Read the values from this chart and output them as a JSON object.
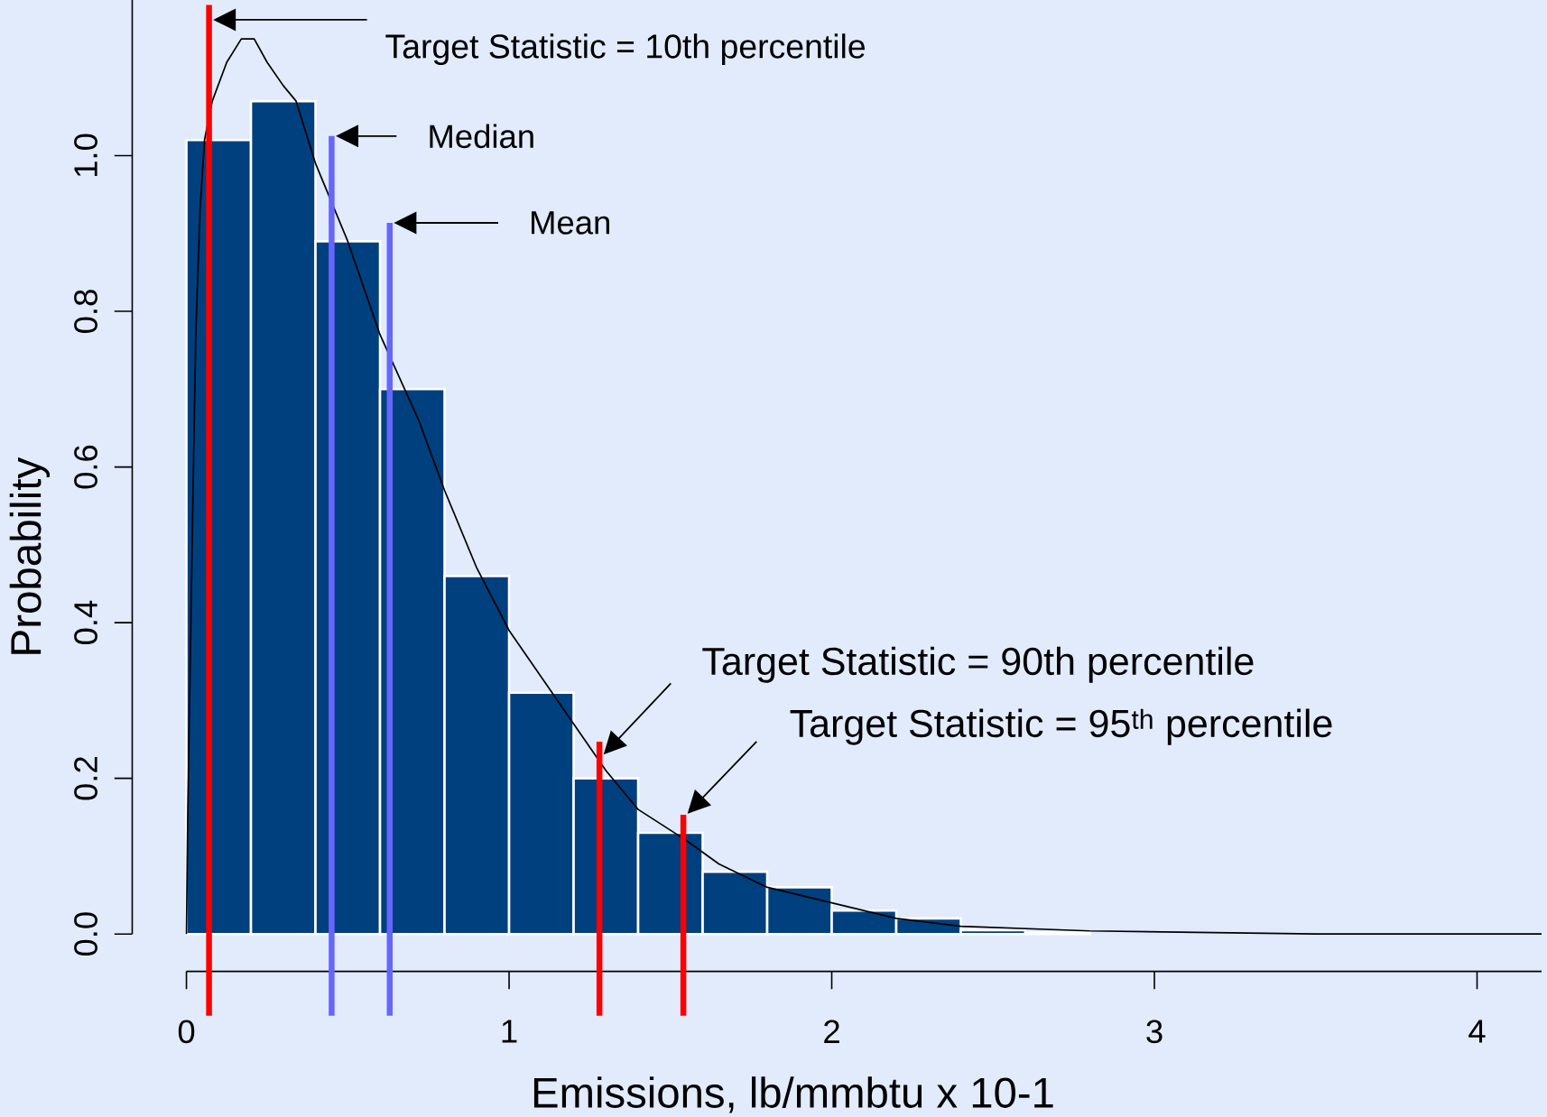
{
  "chart_data": {
    "type": "histogram",
    "xlabel": "Emissions, lb/mmbtu x 10-1",
    "ylabel": "Probability",
    "bins": [
      0,
      0.2,
      0.4,
      0.6,
      0.8,
      1.0,
      1.2,
      1.4,
      1.6,
      1.8,
      2.0,
      2.2,
      2.4,
      2.6,
      2.8
    ],
    "series": [
      {
        "color": "#00407f",
        "values": [
          1.02,
          1.07,
          0.89,
          0.7,
          0.46,
          0.31,
          0.2,
          0.13,
          0.08,
          0.06,
          0.03,
          0.02,
          0.005,
          0.002
        ]
      },
      {
        "type": "line",
        "color": "#000000",
        "x": [
          0,
          0.004,
          0.018,
          0.029,
          0.042,
          0.056,
          0.08,
          0.125,
          0.17,
          0.21,
          0.25,
          0.3,
          0.34,
          0.4,
          0.5,
          0.6,
          0.72,
          0.8,
          0.9,
          1.0,
          1.1,
          1.2,
          1.3,
          1.4,
          1.55,
          1.65,
          1.8,
          2.0,
          2.2,
          2.4,
          2.8,
          3.5,
          4.2
        ],
        "values": [
          0,
          0.15,
          0.51,
          0.77,
          0.93,
          1.02,
          1.07,
          1.12,
          1.15,
          1.15,
          1.12,
          1.09,
          1.07,
          0.99,
          0.89,
          0.77,
          0.66,
          0.57,
          0.47,
          0.39,
          0.33,
          0.27,
          0.21,
          0.16,
          0.12,
          0.09,
          0.06,
          0.04,
          0.02,
          0.01,
          0.004,
          0,
          0
        ]
      }
    ],
    "xlim": [
      0,
      4.2
    ],
    "ylim": [
      0,
      1.2
    ],
    "xticks": [
      0,
      1,
      2,
      3,
      4
    ],
    "yticks": [
      {
        "value": 0,
        "label": "0.0"
      },
      0.2,
      0.4,
      0.6,
      0.8,
      {
        "value": 1,
        "label": "1.0"
      }
    ],
    "ref_lines": [
      {
        "axis": "x",
        "value": 0.07,
        "color": "#ff0000"
      },
      {
        "axis": "x",
        "value": 0.45,
        "color": "#6666ff"
      },
      {
        "axis": "x",
        "value": 0.63,
        "color": "#6666ff"
      },
      {
        "axis": "x",
        "value": 1.28,
        "color": "#ff0000"
      },
      {
        "axis": "x",
        "value": 1.54,
        "color": "#ff0000"
      }
    ],
    "annotations": [
      "Target Statistic = 10th percentile",
      "Median",
      "Mean",
      "Target Statistic = 90th percentile",
      "Target Statistic = 95$^{th}$ percentile"
    ]
  }
}
